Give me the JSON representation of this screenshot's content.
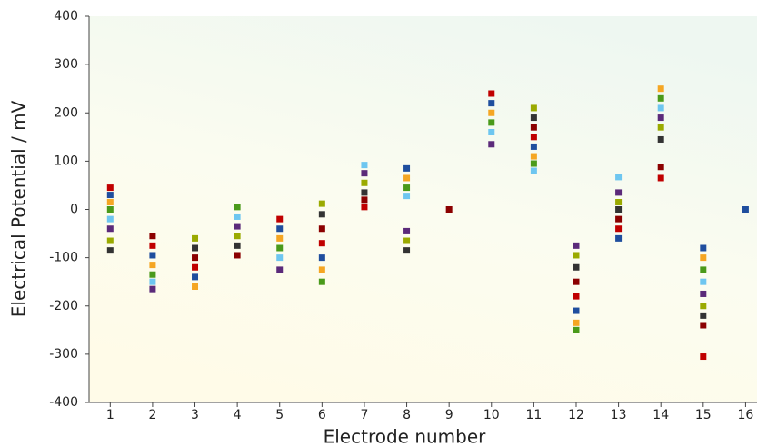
{
  "chart_data": {
    "type": "scatter",
    "xlabel": "Electrode number",
    "ylabel": "Electrical Potential / mV",
    "x": [
      1,
      1,
      1,
      1,
      1,
      1,
      1,
      1,
      2,
      2,
      2,
      2,
      2,
      2,
      2,
      3,
      3,
      3,
      3,
      3,
      3,
      4,
      4,
      4,
      4,
      4,
      4,
      5,
      5,
      5,
      5,
      5,
      5,
      6,
      6,
      6,
      6,
      6,
      6,
      6,
      7,
      7,
      7,
      7,
      7,
      7,
      8,
      8,
      8,
      8,
      8,
      8,
      8,
      9,
      10,
      10,
      10,
      10,
      10,
      10,
      11,
      11,
      11,
      11,
      11,
      11,
      11,
      11,
      12,
      12,
      12,
      12,
      12,
      12,
      12,
      12,
      13,
      13,
      13,
      13,
      13,
      13,
      13,
      14,
      14,
      14,
      14,
      14,
      14,
      14,
      14,
      15,
      15,
      15,
      15,
      15,
      15,
      15,
      15,
      15,
      16
    ],
    "values": [
      45,
      30,
      15,
      0,
      -20,
      -40,
      -65,
      -85,
      -55,
      -75,
      -95,
      -115,
      -135,
      -150,
      -165,
      -60,
      -80,
      -100,
      -120,
      -140,
      -160,
      5,
      -15,
      -35,
      -55,
      -75,
      -95,
      -20,
      -40,
      -60,
      -80,
      -100,
      -125,
      12,
      -10,
      -40,
      -70,
      -100,
      -125,
      -150,
      92,
      75,
      55,
      35,
      20,
      5,
      85,
      65,
      45,
      28,
      -45,
      -65,
      -85,
      0,
      240,
      220,
      200,
      180,
      160,
      135,
      210,
      190,
      170,
      150,
      130,
      110,
      95,
      80,
      -75,
      -95,
      -120,
      -150,
      -180,
      -210,
      -235,
      -250,
      67,
      35,
      15,
      0,
      -20,
      -40,
      -60,
      250,
      230,
      210,
      190,
      170,
      145,
      88,
      65,
      -80,
      -100,
      -125,
      -150,
      -175,
      -200,
      -220,
      -240,
      -305,
      0
    ],
    "palette": [
      "#c00000",
      "#1f4e9e",
      "#f5a623",
      "#4a9a1a",
      "#6ec6f0",
      "#5b2a7a",
      "#9aaa00",
      "#333333",
      "#8b0000"
    ],
    "xlim": [
      0.5,
      16.27
    ],
    "xticks": [
      1,
      2,
      3,
      4,
      5,
      6,
      7,
      8,
      9,
      10,
      11,
      12,
      13,
      14,
      15,
      16
    ],
    "ylim": [
      -400,
      400
    ],
    "yticks": [
      -400,
      -300,
      -200,
      -100,
      0,
      100,
      200,
      300,
      400
    ]
  }
}
